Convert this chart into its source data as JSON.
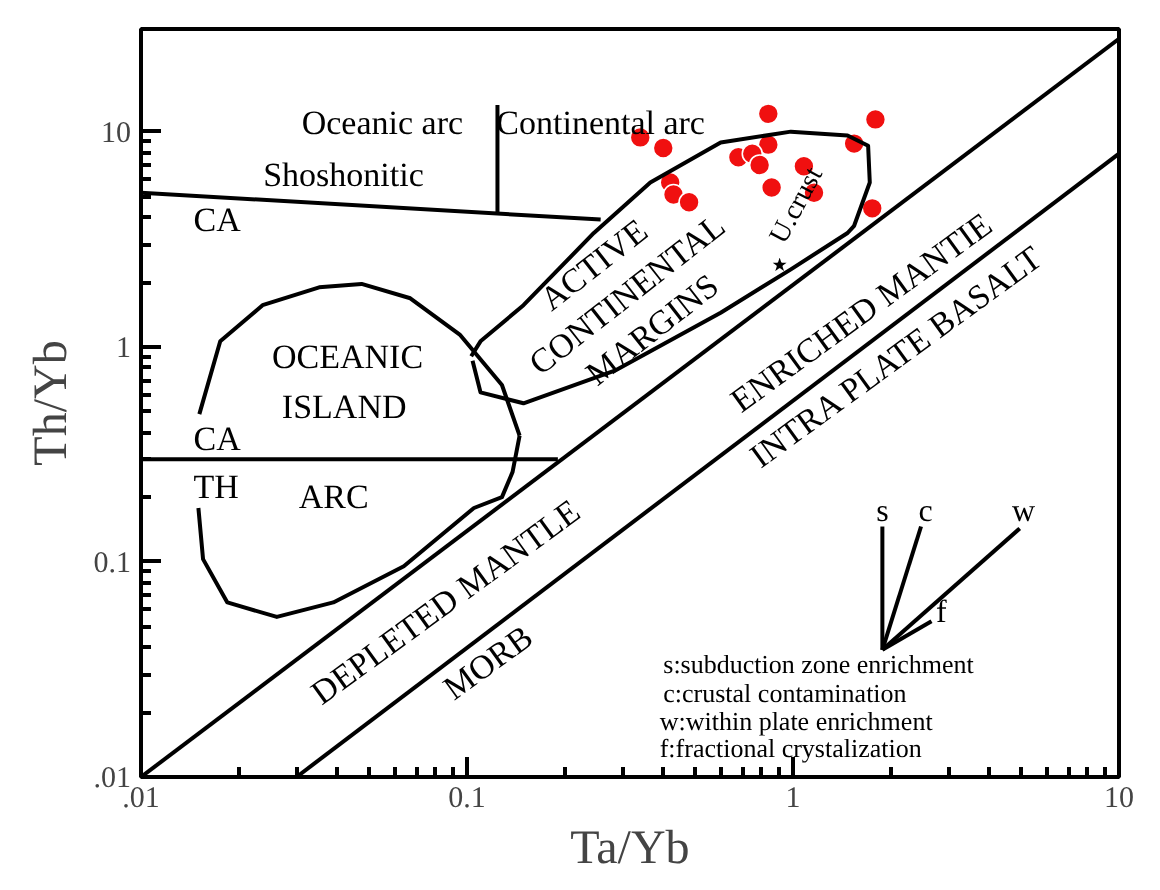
{
  "chart_data": {
    "type": "scatter",
    "xlabel": "Ta/Yb",
    "ylabel": "Th/Yb",
    "log": "xy",
    "grid": false,
    "xlim": [
      0.01,
      10
    ],
    "ylim": [
      0.01,
      30
    ],
    "xticks": [
      {
        "value": 0.01,
        "label": ".01"
      },
      {
        "value": 0.1,
        "label": "0.1"
      },
      {
        "value": 1,
        "label": "1"
      },
      {
        "value": 10,
        "label": "10"
      }
    ],
    "yticks": [
      {
        "value": 0.01,
        "label": ".01"
      },
      {
        "value": 0.1,
        "label": "0.1"
      },
      {
        "value": 1,
        "label": "1"
      },
      {
        "value": 10,
        "label": "10"
      }
    ],
    "series": [
      {
        "marker": "circle",
        "color": "#f01010",
        "x": [
          0.34,
          0.4,
          0.42,
          0.43,
          0.48,
          0.84,
          0.84,
          0.68,
          0.75,
          0.79,
          0.86,
          1.08,
          1.16,
          1.54,
          1.79,
          1.75
        ],
        "values": [
          9.4,
          8.4,
          5.8,
          5.1,
          4.7,
          12.1,
          8.7,
          7.6,
          7.9,
          7.0,
          5.5,
          6.9,
          5.2,
          8.8,
          11.4,
          4.4
        ]
      },
      {
        "marker": "star",
        "color": "#000000",
        "name": "U.crust",
        "x": [
          0.91
        ],
        "values": [
          2.4
        ]
      },
      {
        "type": "line",
        "marker": "none",
        "color": "#000000",
        "x": [
          0.01,
          10
        ],
        "values": [
          0.01,
          27
        ]
      },
      {
        "type": "line",
        "marker": "none",
        "color": "#000000",
        "x": [
          0.03,
          10
        ],
        "values": [
          0.01,
          7.9
        ]
      },
      {
        "type": "line",
        "marker": "none",
        "color": "#000000",
        "x": [
          0.01,
          0.19
        ],
        "values": [
          0.3,
          0.3
        ]
      },
      {
        "type": "line",
        "marker": "none",
        "color": "#000000",
        "x": [
          0.01,
          0.257
        ],
        "values": [
          5.2,
          3.9
        ]
      },
      {
        "type": "line",
        "marker": "none",
        "color": "#000000",
        "x": [
          0.124,
          0.124
        ],
        "values": [
          4.2,
          13.3
        ]
      },
      {
        "type": "line",
        "marker": "none",
        "color": "#000000",
        "x": [
          0.103,
          0.11,
          0.149,
          0.245,
          0.365,
          0.6,
          0.985,
          1.47,
          1.7,
          1.72,
          1.54,
          1.47,
          0.985,
          0.6,
          0.284,
          0.149,
          0.11,
          0.104
        ],
        "values": [
          0.904,
          1.06,
          1.56,
          3.38,
          5.8,
          8.9,
          10,
          9.6,
          8.6,
          5.8,
          3.65,
          3.38,
          2.29,
          1.44,
          0.774,
          0.546,
          0.614,
          0.86
        ]
      },
      {
        "type": "line",
        "marker": "none",
        "color": "#000000",
        "x": [
          0.0151,
          0.0175,
          0.0236,
          0.0352,
          0.0475,
          0.067,
          0.095,
          0.128,
          0.145
        ],
        "values": [
          0.486,
          1.06,
          1.56,
          1.89,
          1.96,
          1.68,
          1.14,
          0.664,
          0.386
        ]
      },
      {
        "type": "line",
        "marker": "none",
        "color": "#000000",
        "x": [
          0.145,
          0.138,
          0.128,
          0.105,
          0.064,
          0.0389,
          0.0261,
          0.0184,
          0.0155,
          0.015
        ],
        "values": [
          0.386,
          0.262,
          0.2,
          0.178,
          0.0955,
          0.0648,
          0.0555,
          0.0648,
          0.103,
          0.178
        ]
      },
      {
        "type": "line",
        "marker": "none",
        "color": "#000000",
        "x": [
          1.88,
          1.88
        ],
        "values": [
          0.039,
          0.146
        ]
      },
      {
        "type": "line",
        "marker": "none",
        "color": "#000000",
        "x": [
          1.88,
          2.47
        ],
        "values": [
          0.039,
          0.146
        ]
      },
      {
        "type": "line",
        "marker": "none",
        "color": "#000000",
        "x": [
          1.88,
          4.96
        ],
        "values": [
          0.039,
          0.143
        ]
      },
      {
        "type": "line",
        "marker": "none",
        "color": "#000000",
        "x": [
          1.88,
          2.66
        ],
        "values": [
          0.039,
          0.053
        ]
      }
    ],
    "annotations": [
      "Oceanic arc",
      "Continental arc",
      "Shoshonitic",
      "CA",
      "OCEANIC",
      "ISLAND",
      "CA",
      "TH",
      "ARC",
      "ACTIVE",
      "CONTINENTAL",
      "MARGINS",
      "ENRICHED MANTIE",
      "INTRA PLATE BASALT",
      "DEPLETED MANTLE",
      "MORB",
      "s",
      "c",
      "w",
      "f",
      "s:subduction zone enrichment",
      "c:crustal contamination",
      "w:within plate enrichment",
      "f:fractional crystalization"
    ]
  }
}
